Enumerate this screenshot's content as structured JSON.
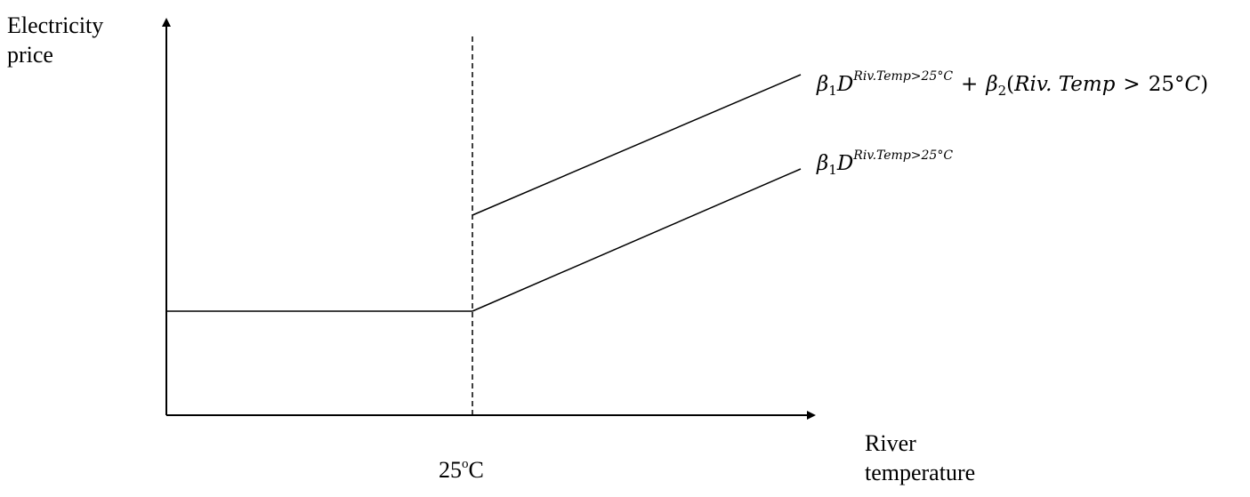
{
  "y_axis_label": {
    "line1": "Electricity",
    "line2": "price"
  },
  "x_axis_label": {
    "line1": "River",
    "line2": "temperature"
  },
  "threshold_label": {
    "value": "25",
    "degree": "o",
    "unit": "C"
  },
  "upper_curve_label": {
    "beta": "β",
    "beta1_sub": "1",
    "d": "D",
    "d_sup": "Riv.Temp>25°C",
    "plus": "+",
    "beta2_sub": "2",
    "paren_open": "(",
    "term": "Riv. Temp",
    "gt": ">",
    "deg_val": "25°",
    "deg_unit": "C",
    "paren_close": ")"
  },
  "lower_curve_label": {
    "beta": "β",
    "beta1_sub": "1",
    "d": "D",
    "d_sup": "Riv.Temp>25°C"
  }
}
